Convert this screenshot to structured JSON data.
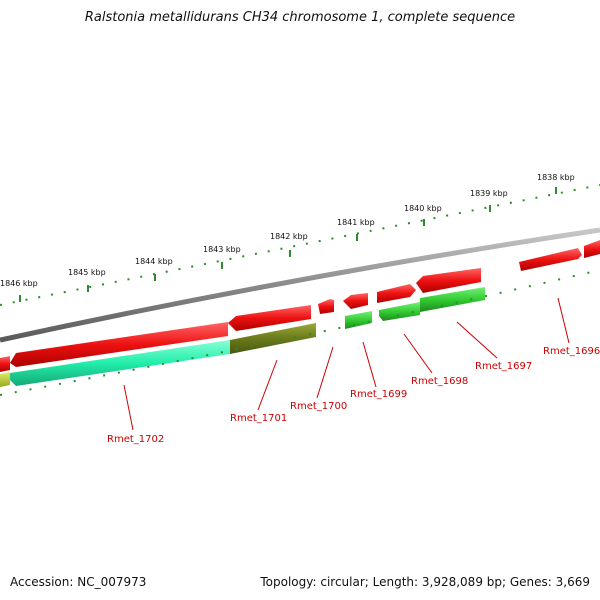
{
  "title": "Ralstonia metallidurans CH34 chromosome 1, complete sequence",
  "footer": {
    "accession": "Accession: NC_007973",
    "topology": "Topology: circular; Length: 3,928,089 bp; Genes: 3,669"
  },
  "colors": {
    "backbone": "#8a8a8a",
    "forward_gene": "#ee1111",
    "reverse_gene": "#33cc33",
    "reverse_gene_highlight_teal": "#22eeaa",
    "reverse_gene_highlight_olive": "#6b7a1a",
    "tick": "#2d8a2d",
    "label": "#cc0000"
  },
  "scale_labels": [
    "1846 kbp",
    "1845 kbp",
    "1844 kbp",
    "1843 kbp",
    "1842 kbp",
    "1841 kbp",
    "1840 kbp",
    "1839 kbp",
    "1838 kbp"
  ],
  "gene_labels": [
    "Rmet_1702",
    "Rmet_1701",
    "Rmet_1700",
    "Rmet_1699",
    "Rmet_1698",
    "Rmet_1697",
    "Rmet_1696"
  ]
}
